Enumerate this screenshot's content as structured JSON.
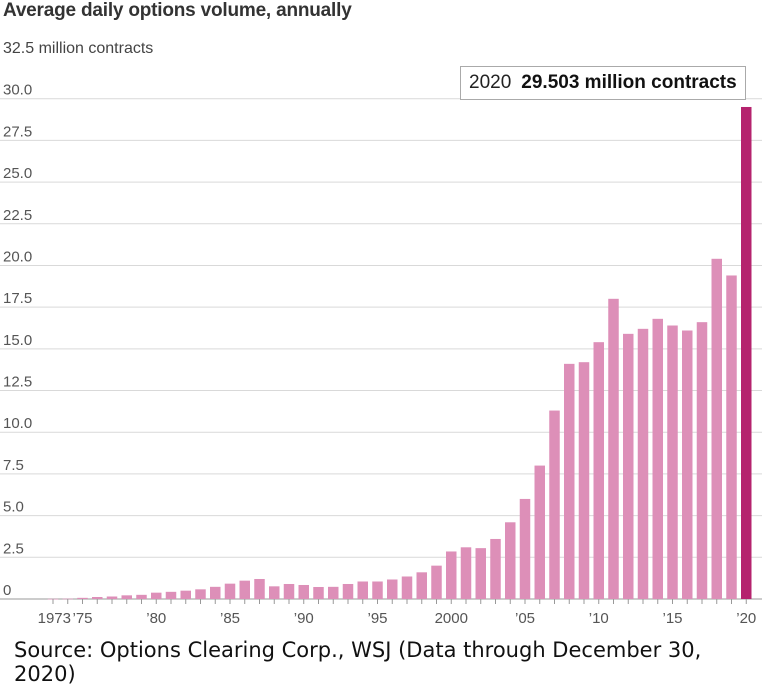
{
  "chart_data": {
    "type": "bar",
    "title": "Average daily options volume, annually",
    "unit_label": "32.5 million contracts",
    "ylim": [
      0,
      32.5
    ],
    "y_ticks": [
      "0",
      "2.5",
      "5.0",
      "7.5",
      "10.0",
      "12.5",
      "15.0",
      "17.5",
      "20.0",
      "22.5",
      "25.0",
      "27.5",
      "30.0"
    ],
    "x_tick_labels": [
      {
        "year": 1973,
        "label": "1973"
      },
      {
        "year": 1975,
        "label": "’75"
      },
      {
        "year": 1980,
        "label": "’80"
      },
      {
        "year": 1985,
        "label": "’85"
      },
      {
        "year": 1990,
        "label": "’90"
      },
      {
        "year": 1995,
        "label": "’95"
      },
      {
        "year": 2000,
        "label": "2000"
      },
      {
        "year": 2005,
        "label": "’05"
      },
      {
        "year": 2010,
        "label": "’10"
      },
      {
        "year": 2015,
        "label": "’15"
      },
      {
        "year": 2020,
        "label": "’20"
      }
    ],
    "grid": true,
    "highlight": {
      "year": "2020",
      "value_text": "29.503 million contracts"
    },
    "colors": {
      "bar": "#dd8fb8",
      "highlight": "#b5236e",
      "grid": "#d9d9d9"
    },
    "categories": [
      1973,
      1974,
      1975,
      1976,
      1977,
      1978,
      1979,
      1980,
      1981,
      1982,
      1983,
      1984,
      1985,
      1986,
      1987,
      1988,
      1989,
      1990,
      1991,
      1992,
      1993,
      1994,
      1995,
      1996,
      1997,
      1998,
      1999,
      2000,
      2001,
      2002,
      2003,
      2004,
      2005,
      2006,
      2007,
      2008,
      2009,
      2010,
      2011,
      2012,
      2013,
      2014,
      2015,
      2016,
      2017,
      2018,
      2019,
      2020
    ],
    "values": [
      0.01,
      0.02,
      0.07,
      0.12,
      0.15,
      0.22,
      0.25,
      0.38,
      0.43,
      0.5,
      0.58,
      0.73,
      0.92,
      1.1,
      1.2,
      0.76,
      0.9,
      0.84,
      0.72,
      0.73,
      0.9,
      1.05,
      1.05,
      1.17,
      1.35,
      1.6,
      2.0,
      2.85,
      3.1,
      3.05,
      3.6,
      4.6,
      6.0,
      8.0,
      11.3,
      14.1,
      14.2,
      15.4,
      18.0,
      15.9,
      16.2,
      16.8,
      16.4,
      16.1,
      16.6,
      20.4,
      19.4,
      29.503
    ]
  },
  "source": "Source: Options Clearing Corp., WSJ (Data through December 30, 2020)"
}
